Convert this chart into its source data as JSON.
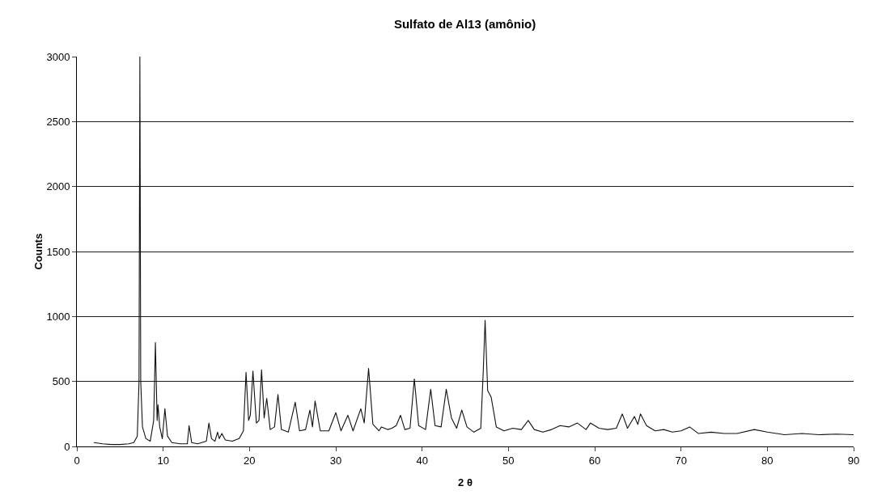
{
  "chart_data": {
    "type": "line",
    "title": "Sulfato de Al13 (amônio)",
    "xlabel": "2 θ",
    "ylabel": "Counts",
    "x": [
      2,
      3,
      4,
      5,
      6,
      6.6,
      7.0,
      7.2,
      7.3,
      7.4,
      7.6,
      8.0,
      8.5,
      8.9,
      9.1,
      9.3,
      9.4,
      9.6,
      9.9,
      10.2,
      10.5,
      11,
      12,
      12.8,
      13.0,
      13.3,
      14,
      15,
      15.3,
      15.6,
      16.0,
      16.3,
      16.5,
      16.8,
      17.2,
      18,
      18.8,
      19.3,
      19.6,
      19.9,
      20.1,
      20.4,
      20.8,
      21.1,
      21.4,
      21.7,
      22.0,
      22.4,
      22.9,
      23.3,
      23.7,
      24.5,
      25.3,
      25.8,
      26.5,
      27.0,
      27.3,
      27.6,
      28.2,
      29.2,
      30.0,
      30.6,
      31.4,
      32.0,
      32.9,
      33.3,
      33.8,
      34.3,
      35.0,
      35.3,
      36,
      36.5,
      37.0,
      37.5,
      38.0,
      38.6,
      39.1,
      39.6,
      40.4,
      41.0,
      41.5,
      42.2,
      42.8,
      43.4,
      44.0,
      44.6,
      45.2,
      46.0,
      46.8,
      47.1,
      47.3,
      47.6,
      48.0,
      48.6,
      49.5,
      50.5,
      51.5,
      52.3,
      53,
      54,
      55,
      56,
      57,
      58,
      59,
      59.5,
      60.5,
      61.5,
      62.5,
      63.2,
      63.8,
      64.6,
      65.0,
      65.3,
      66,
      67,
      68,
      69,
      70,
      71,
      72,
      73.5,
      75,
      76.5,
      78.5,
      80,
      82,
      84,
      86,
      88,
      90
    ],
    "series": [
      {
        "color": "#111111",
        "values": [
          30,
          20,
          15,
          15,
          20,
          30,
          80,
          500,
          3000,
          500,
          150,
          60,
          40,
          200,
          800,
          200,
          320,
          150,
          60,
          290,
          80,
          30,
          20,
          20,
          160,
          30,
          20,
          40,
          180,
          60,
          40,
          110,
          60,
          100,
          50,
          40,
          60,
          120,
          570,
          200,
          240,
          580,
          180,
          200,
          590,
          220,
          370,
          130,
          150,
          400,
          130,
          110,
          340,
          120,
          130,
          280,
          150,
          350,
          120,
          120,
          260,
          120,
          240,
          120,
          290,
          180,
          600,
          170,
          120,
          150,
          130,
          140,
          160,
          240,
          130,
          140,
          520,
          160,
          130,
          440,
          160,
          150,
          440,
          220,
          140,
          280,
          150,
          110,
          140,
          600,
          970,
          430,
          380,
          150,
          120,
          140,
          130,
          200,
          130,
          110,
          130,
          160,
          150,
          180,
          130,
          180,
          140,
          130,
          140,
          250,
          140,
          230,
          170,
          250,
          160,
          120,
          130,
          110,
          120,
          150,
          100,
          110,
          100,
          100,
          130,
          110,
          90,
          100,
          90,
          95,
          90
        ]
      }
    ],
    "xlim": [
      0,
      90
    ],
    "xticks": [
      0,
      10,
      20,
      30,
      40,
      50,
      60,
      70,
      80,
      90
    ],
    "ylim": [
      0,
      3000
    ],
    "yticks": [
      0,
      500,
      1000,
      1500,
      2000,
      2500,
      3000
    ],
    "grid": "y",
    "line_style": "solid",
    "marker": "none"
  }
}
